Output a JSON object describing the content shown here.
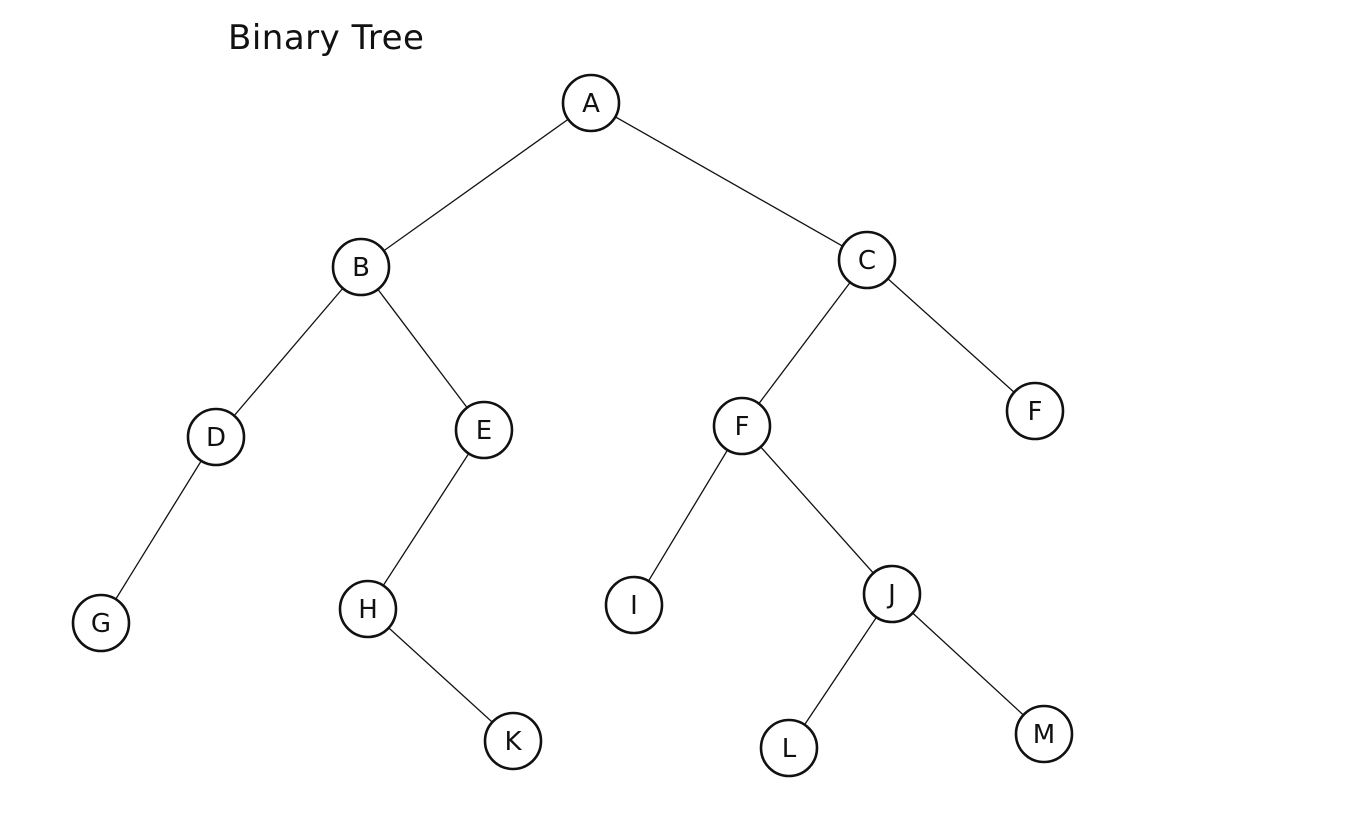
{
  "title": "Binary Tree",
  "nodes": [
    {
      "id": "n_A",
      "label": "A"
    },
    {
      "id": "n_B",
      "label": "B"
    },
    {
      "id": "n_C",
      "label": "C"
    },
    {
      "id": "n_D",
      "label": "D"
    },
    {
      "id": "n_E",
      "label": "E"
    },
    {
      "id": "n_F1",
      "label": "F"
    },
    {
      "id": "n_F2",
      "label": "F"
    },
    {
      "id": "n_G",
      "label": "G"
    },
    {
      "id": "n_H",
      "label": "H"
    },
    {
      "id": "n_I",
      "label": "I"
    },
    {
      "id": "n_J",
      "label": "J"
    },
    {
      "id": "n_K",
      "label": "K"
    },
    {
      "id": "n_L",
      "label": "L"
    },
    {
      "id": "n_M",
      "label": "M"
    }
  ],
  "edges": [
    {
      "from": "n_A",
      "to": "n_B"
    },
    {
      "from": "n_A",
      "to": "n_C"
    },
    {
      "from": "n_B",
      "to": "n_D"
    },
    {
      "from": "n_B",
      "to": "n_E"
    },
    {
      "from": "n_C",
      "to": "n_F1"
    },
    {
      "from": "n_C",
      "to": "n_F2"
    },
    {
      "from": "n_D",
      "to": "n_G"
    },
    {
      "from": "n_E",
      "to": "n_H"
    },
    {
      "from": "n_F1",
      "to": "n_I"
    },
    {
      "from": "n_F1",
      "to": "n_J"
    },
    {
      "from": "n_H",
      "to": "n_K"
    },
    {
      "from": "n_J",
      "to": "n_L"
    },
    {
      "from": "n_J",
      "to": "n_M"
    }
  ]
}
